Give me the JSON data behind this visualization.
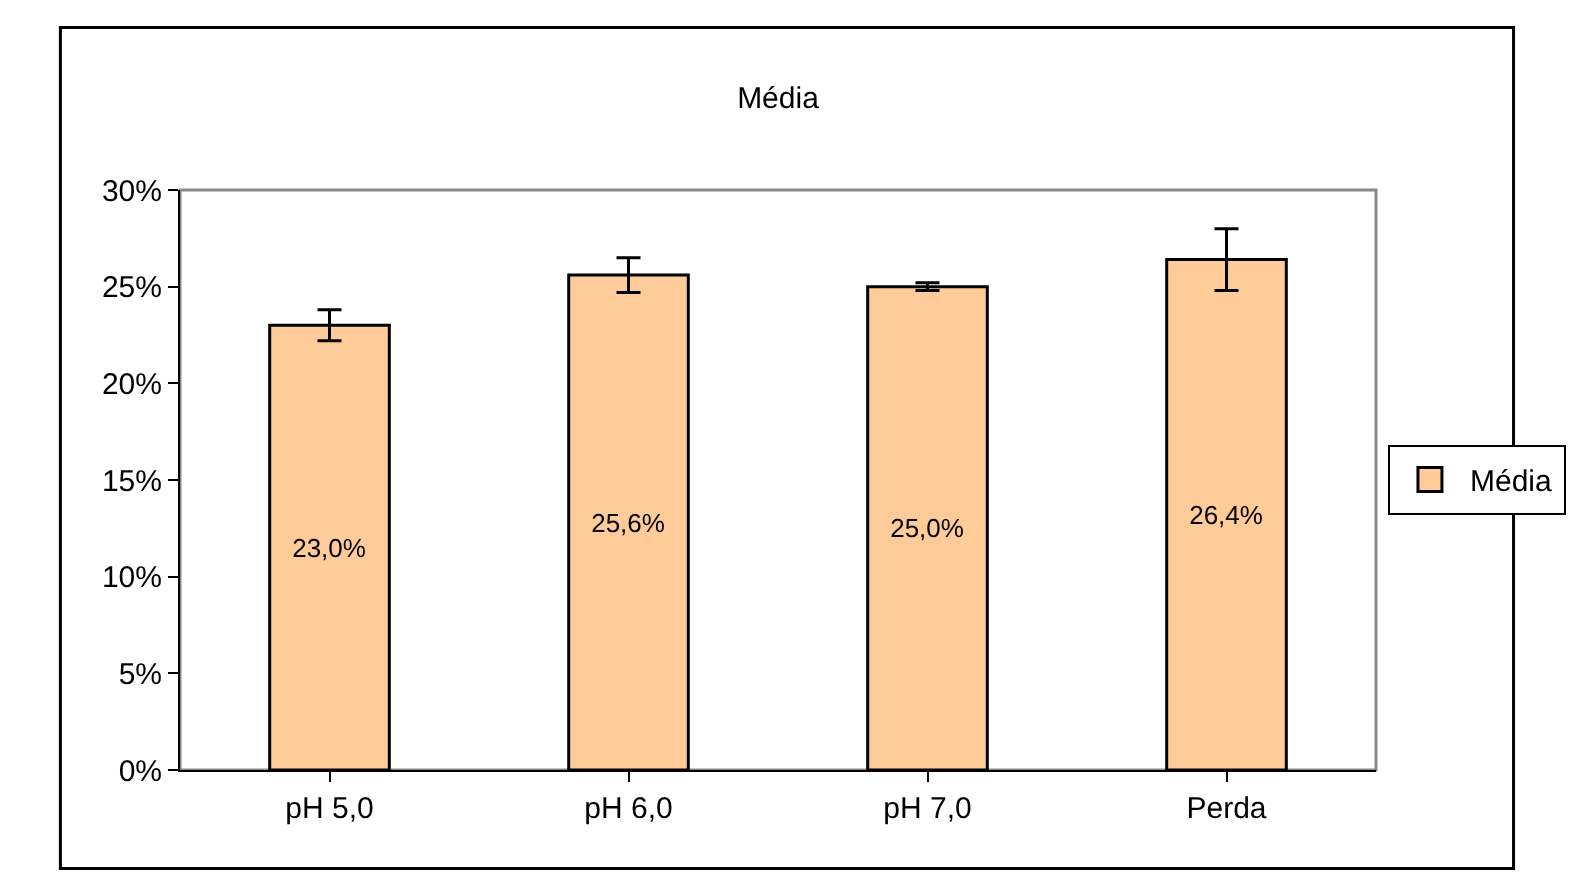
{
  "chart_data": {
    "type": "bar",
    "title": "Média",
    "categories": [
      "pH 5,0",
      "pH 6,0",
      "pH 7,0",
      "Perda"
    ],
    "series": [
      {
        "name": "Média",
        "color": "#ffcc99",
        "values": [
          23.0,
          25.6,
          25.0,
          26.4
        ],
        "errors": [
          0.8,
          0.9,
          0.2,
          1.6
        ],
        "value_labels": [
          "23,0%",
          "25,6%",
          "25,0%",
          "26,4%"
        ]
      }
    ],
    "ylim": [
      0,
      30
    ],
    "yticks": [
      {
        "value": 0,
        "label": "0%"
      },
      {
        "value": 5,
        "label": "5%"
      },
      {
        "value": 10,
        "label": "10%"
      },
      {
        "value": 15,
        "label": "15%"
      },
      {
        "value": 20,
        "label": "20%"
      },
      {
        "value": 25,
        "label": "25%"
      },
      {
        "value": 30,
        "label": "30%"
      }
    ],
    "grid": false,
    "legend": "right"
  }
}
